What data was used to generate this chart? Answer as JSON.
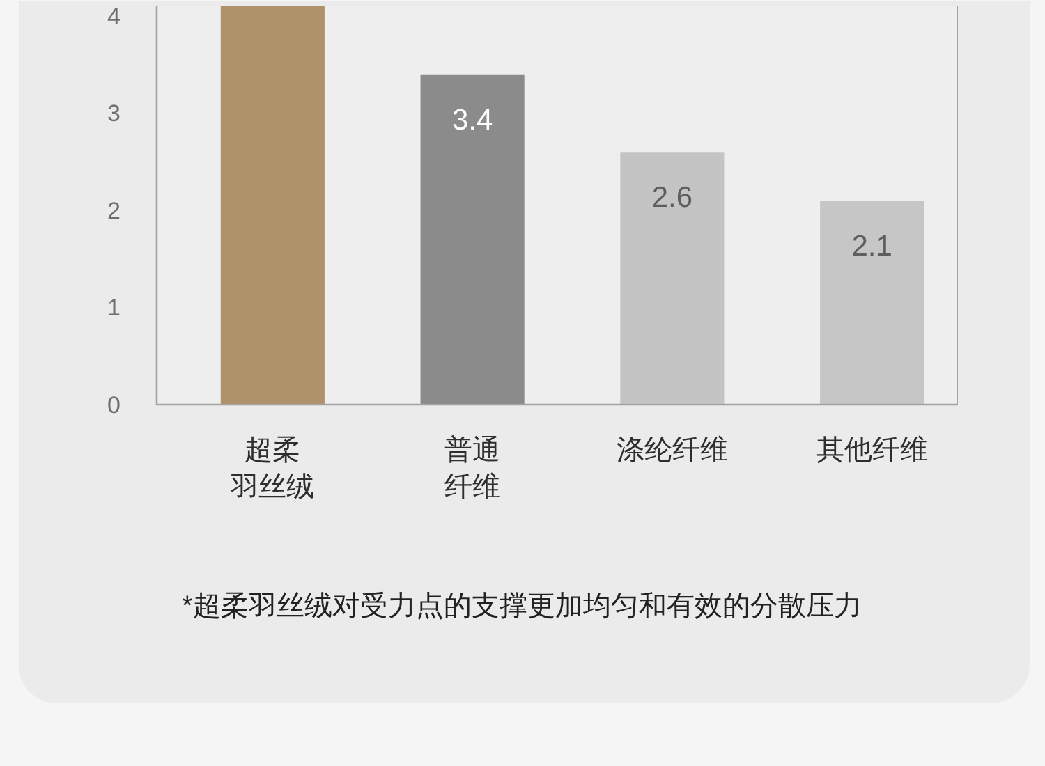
{
  "chart_data": {
    "type": "bar",
    "categories": [
      "超柔羽丝绒",
      "普通纤维",
      "涤纶纤维",
      "其他纤维"
    ],
    "values": [
      4.1,
      3.4,
      2.6,
      2.1
    ],
    "colors": [
      "#b0926a",
      "#8b8b8c",
      "#c4c4c5",
      "#c6c6c7"
    ],
    "value_labels": [
      null,
      "3.4",
      "2.6",
      "2.1"
    ],
    "ylim": [
      0,
      4.1
    ],
    "yticks": [
      0,
      1,
      2,
      3,
      4
    ],
    "grid": false,
    "annotations": [
      "*超柔羽丝绒对受力点的支撑更加均匀和有效的分散压力"
    ]
  }
}
